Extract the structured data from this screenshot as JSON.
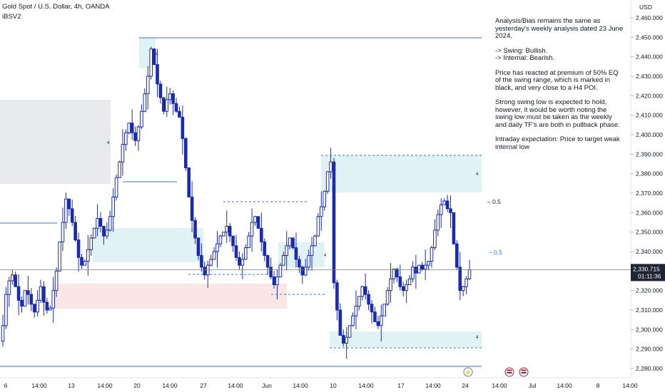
{
  "header": {
    "symbol": "Gold Spot / U.S. Dollar, 4h, OANDA",
    "indicator": "iBSV2"
  },
  "currency_label": "USD",
  "analysis": {
    "line1": "Analysis/Bias remains the same as yesterday's weekly analysis dated 23 June 2024.",
    "swing": "-> Swing:  Bullish.",
    "internal": "-> Internal:  Bearish.",
    "line2": "Price has reacted at premium of 50% EQ of the swing range, which is marked in black, and very close to a H4 POI.",
    "line3": "Strong swing low is expected to hold, however, it would be worth noting the swing low must be taken as the weekly and daily TF's are both in pullback phase.",
    "line4": "Intraday expectation: Price to target weak internal low"
  },
  "annotations": {
    "eq_label_1": "0.5",
    "eq_label_2": "0.5",
    "marker": "4"
  },
  "colors": {
    "bull": "#1a2bb0",
    "bear": "#1a2bb0",
    "teal_zone": "#e1f2f4",
    "pink_zone": "#fbe6e6",
    "gray_zone": "#e9eaee",
    "level_line": "#3d6fd6",
    "current_price_bg": "#1e2433"
  },
  "chart_data": {
    "type": "candlestick",
    "symbol": "Gold Spot / U.S. Dollar",
    "timeframe": "4h",
    "exchange": "OANDA",
    "y_axis": {
      "min": 2275,
      "max": 2465,
      "ticks": [
        "2,460.000",
        "2,450.000",
        "2,440.000",
        "2,430.000",
        "2,420.000",
        "2,410.000",
        "2,400.000",
        "2,390.000",
        "2,380.000",
        "2,370.000",
        "2,360.000",
        "2,350.000",
        "2,340.000",
        "2,330.000",
        "2,320.000",
        "2,310.000",
        "2,300.000",
        "2,290.000",
        "2,280.000"
      ]
    },
    "x_axis": {
      "ticks": [
        "6",
        "14:00",
        "13",
        "14:00",
        "20",
        "14:00",
        "27",
        "14:00",
        "Jun",
        "14:00",
        "10",
        "14:00",
        "17",
        "14:00",
        "24",
        "14:00",
        "Jul",
        "14:00",
        "8",
        "14:00"
      ]
    },
    "current_price": "2,330.715",
    "countdown": "01:11:36",
    "closes": [
      2302,
      2318,
      2325,
      2328,
      2322,
      2315,
      2312,
      2320,
      2318,
      2313,
      2309,
      2315,
      2322,
      2314,
      2310,
      2311,
      2320,
      2330,
      2345,
      2355,
      2367,
      2362,
      2355,
      2346,
      2337,
      2333,
      2335,
      2341,
      2347,
      2352,
      2357,
      2353,
      2348,
      2351,
      2358,
      2368,
      2378,
      2386,
      2395,
      2401,
      2406,
      2401,
      2397,
      2404,
      2412,
      2421,
      2430,
      2444,
      2436,
      2426,
      2419,
      2412,
      2418,
      2421,
      2416,
      2412,
      2409,
      2398,
      2383,
      2368,
      2356,
      2347,
      2338,
      2332,
      2328,
      2333,
      2336,
      2340,
      2344,
      2348,
      2350,
      2353,
      2348,
      2343,
      2337,
      2333,
      2336,
      2342,
      2348,
      2355,
      2358,
      2352,
      2345,
      2338,
      2332,
      2327,
      2323,
      2327,
      2333,
      2338,
      2343,
      2347,
      2342,
      2336,
      2332,
      2328,
      2332,
      2338,
      2343,
      2348,
      2358,
      2363,
      2371,
      2381,
      2386,
      2324,
      2310,
      2297,
      2293,
      2296,
      2302,
      2307,
      2312,
      2317,
      2322,
      2318,
      2313,
      2309,
      2304,
      2302,
      2307,
      2313,
      2320,
      2326,
      2331,
      2327,
      2322,
      2320,
      2323,
      2326,
      2332,
      2329,
      2333,
      2331,
      2333,
      2335,
      2342,
      2351,
      2359,
      2364,
      2366,
      2362,
      2360,
      2344,
      2332,
      2320,
      2322,
      2326,
      2330.7
    ]
  }
}
